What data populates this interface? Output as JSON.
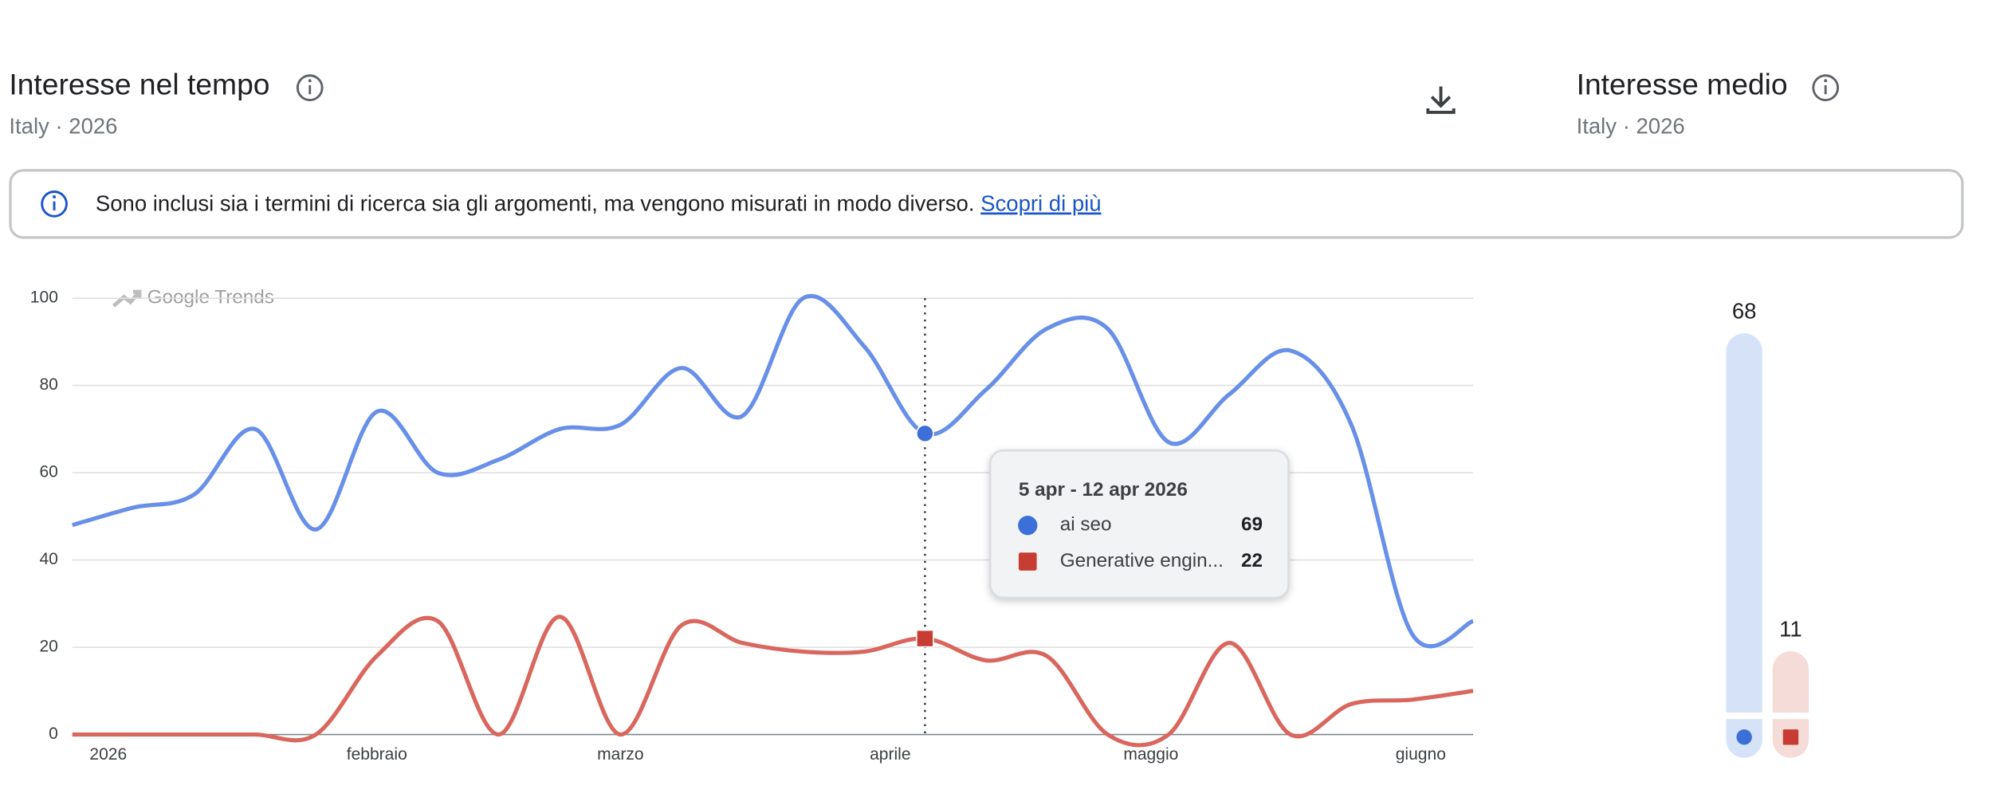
{
  "header": {
    "title": "Interesse nel tempo",
    "subtitle": "Italy · 2026"
  },
  "side_header": {
    "title": "Interesse medio",
    "subtitle": "Italy · 2026"
  },
  "notice": {
    "text": "Sono inclusi sia i termini di ricerca sia gli argomenti, ma vengono misurati in modo diverso.",
    "link": "Scopri di più"
  },
  "chart_data": [
    {
      "type": "line",
      "watermark": "Google Trends",
      "xlim": [
        0,
        23
      ],
      "xticks": [
        {
          "value": 0.59,
          "label": "2026"
        },
        {
          "value": 5,
          "label": "febbraio"
        },
        {
          "value": 9,
          "label": "marzo"
        },
        {
          "value": 13.43,
          "label": "aprile"
        },
        {
          "value": 17.71,
          "label": "maggio"
        },
        {
          "value": 22.14,
          "label": "giugno"
        }
      ],
      "ylim": [
        0,
        100
      ],
      "yticks": [
        0,
        20,
        40,
        60,
        80,
        100
      ],
      "grid": true,
      "highlight_index": 14,
      "tooltip_title": "5 apr - 12 apr 2026",
      "series": [
        {
          "name": "ai seo",
          "color": "#6890e8",
          "values": [
            48,
            52,
            55,
            70,
            47,
            74,
            60,
            63,
            70,
            71,
            84,
            73,
            100,
            89,
            69,
            79,
            93,
            93,
            67,
            78,
            88,
            71,
            23,
            26
          ]
        },
        {
          "name": "Generative engin...",
          "color": "#d9675e",
          "values": [
            0,
            0,
            0,
            0,
            0,
            18,
            26,
            0,
            27,
            0,
            25,
            21,
            19,
            19,
            22,
            17,
            18,
            0,
            0,
            21,
            0,
            7,
            8,
            10
          ]
        }
      ]
    },
    {
      "type": "bar",
      "ylim": [
        0,
        100
      ],
      "values": [
        68,
        11
      ],
      "colors": [
        "#d6e2f8",
        "#f5dcd9"
      ]
    }
  ]
}
